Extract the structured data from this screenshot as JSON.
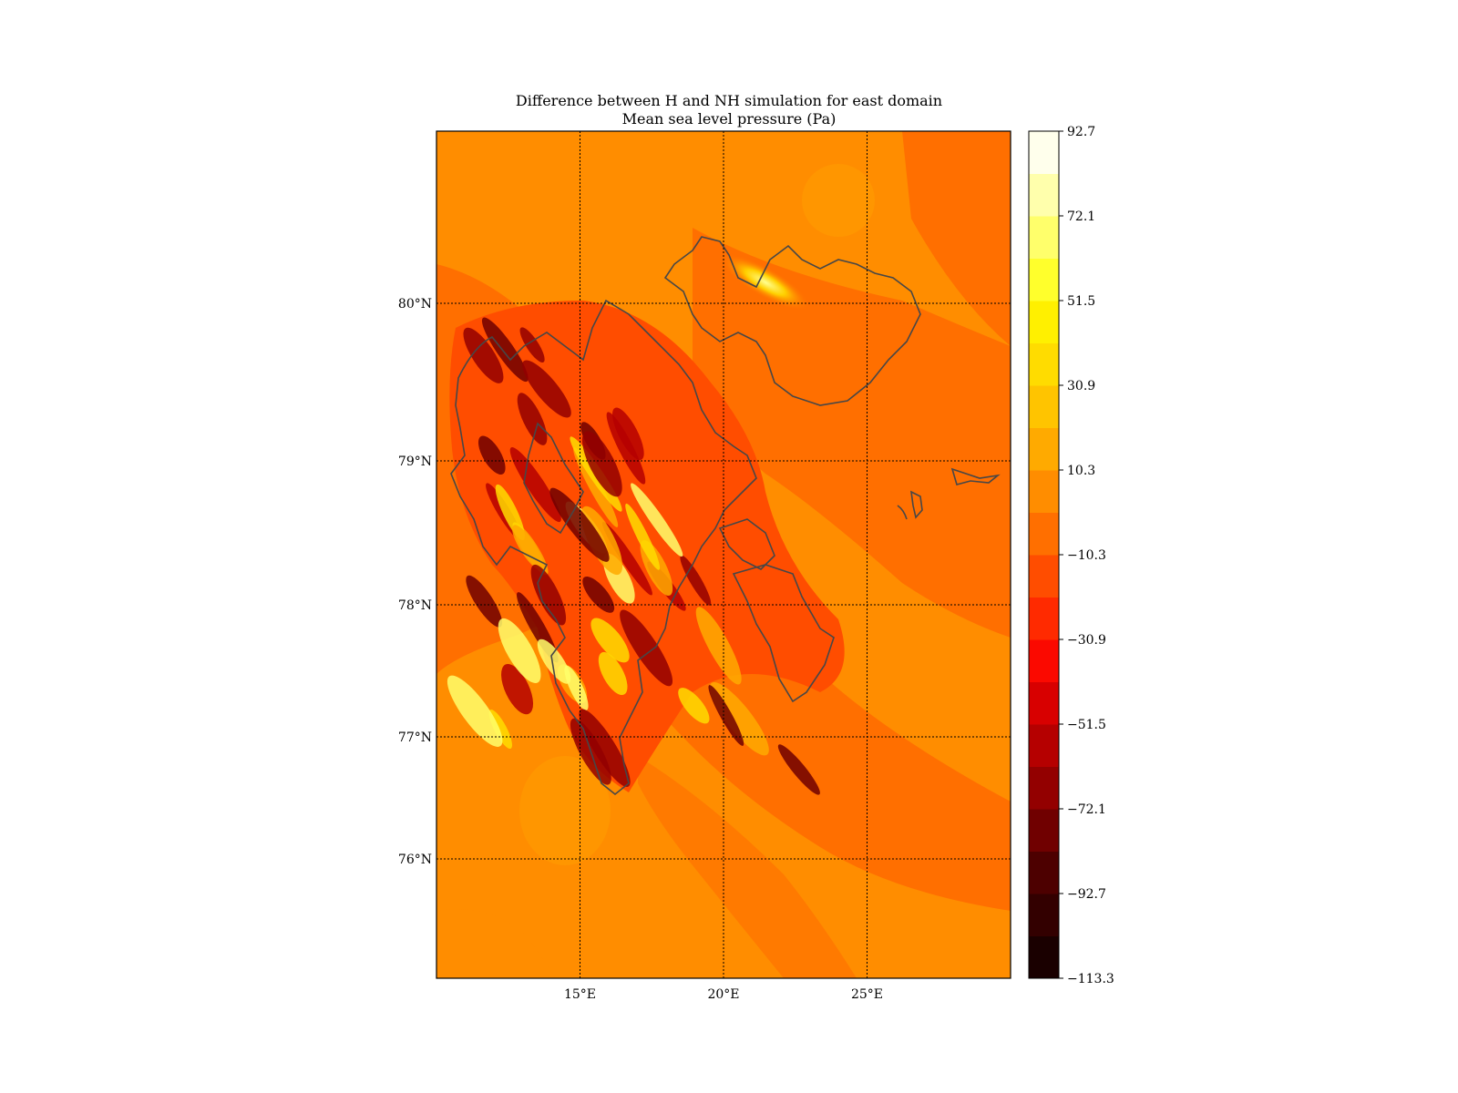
{
  "title": "Difference between H and NH simulation for east domain",
  "subtitle": "Mean sea level pressure (Pa)",
  "map": {
    "lon_labels": [
      "15°E",
      "20°E",
      "25°E"
    ],
    "lat_labels": [
      "80°N",
      "79°N",
      "78°N",
      "77°N",
      "76°N"
    ],
    "gridlines": "dotted",
    "lon_range": [
      10,
      30
    ],
    "lat_range": [
      75.2,
      81.0
    ],
    "lon_lines": [
      15,
      20,
      25
    ],
    "lat_lines": [
      80,
      79,
      78,
      77,
      76
    ],
    "background_color": "#fe7f00"
  },
  "colorbar": {
    "tick_labels": [
      "92.7",
      "72.1",
      "51.5",
      "30.9",
      "10.3",
      "−10.3",
      "−30.9",
      "−51.5",
      "−72.1",
      "−92.7",
      "−113.3"
    ],
    "levels": 20,
    "colors": [
      "#1a0000",
      "#330000",
      "#4d0000",
      "#700000",
      "#930000",
      "#b50000",
      "#d80000",
      "#fb0900",
      "#ff2a00",
      "#ff4d00",
      "#ff6f00",
      "#ff8d00",
      "#ffaa00",
      "#ffc400",
      "#ffdc00",
      "#fff000",
      "#ffff2c",
      "#ffff6b",
      "#ffffac",
      "#ffffec"
    ],
    "colormap": "hot"
  }
}
